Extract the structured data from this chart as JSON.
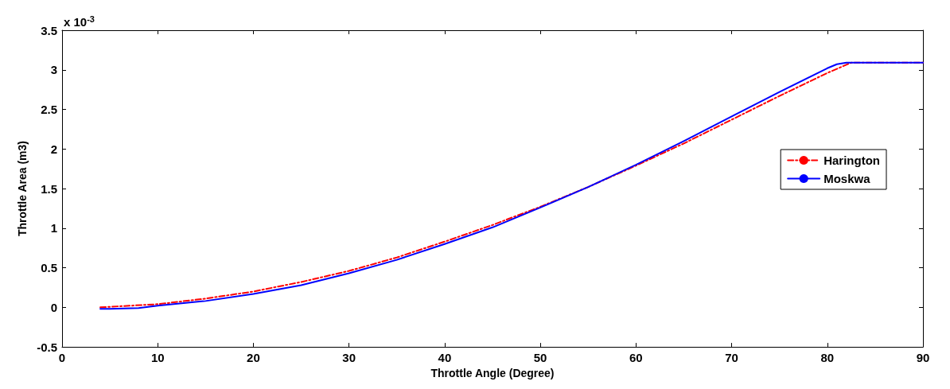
{
  "chart_data": {
    "type": "line",
    "xlabel": "Throttle Angle (Degree)",
    "ylabel": "Throttle Area (m3)",
    "annotations": [
      "x 10$^{-3}$"
    ],
    "xlim": [
      0,
      90
    ],
    "xticks": [
      0,
      10,
      20,
      30,
      40,
      50,
      60,
      70,
      80,
      90
    ],
    "ylim": [
      -0.5,
      3.5
    ],
    "yticks": [
      -0.5,
      0,
      0.5,
      1,
      1.5,
      2,
      2.5,
      3,
      3.5
    ],
    "grid": false,
    "legend": "right",
    "marker": "none",
    "series": [
      {
        "name": "Harington",
        "color": "#ff0000",
        "line_style": "dashed",
        "x": [
          4,
          10,
          15,
          20,
          25,
          30,
          35,
          40,
          45,
          50,
          55,
          60,
          65,
          70,
          75,
          80,
          82.5,
          90
        ],
        "values": [
          0,
          0.04,
          0.11,
          0.2,
          0.32,
          0.46,
          0.63,
          0.83,
          1.04,
          1.27,
          1.52,
          1.79,
          2.07,
          2.37,
          2.67,
          2.96,
          3.09,
          3.09
        ]
      },
      {
        "name": "Moskwa",
        "color": "#0000ff",
        "line_style": "solid",
        "x": [
          4,
          5,
          8,
          10,
          15,
          20,
          25,
          30,
          35,
          40,
          45,
          50,
          55,
          60,
          65,
          70,
          75,
          80,
          81,
          82,
          90
        ],
        "values": [
          -0.02,
          -0.02,
          -0.01,
          0.02,
          0.08,
          0.17,
          0.28,
          0.43,
          0.6,
          0.8,
          1.01,
          1.26,
          1.52,
          1.8,
          2.1,
          2.41,
          2.72,
          3.02,
          3.07,
          3.09,
          3.09
        ]
      }
    ]
  }
}
